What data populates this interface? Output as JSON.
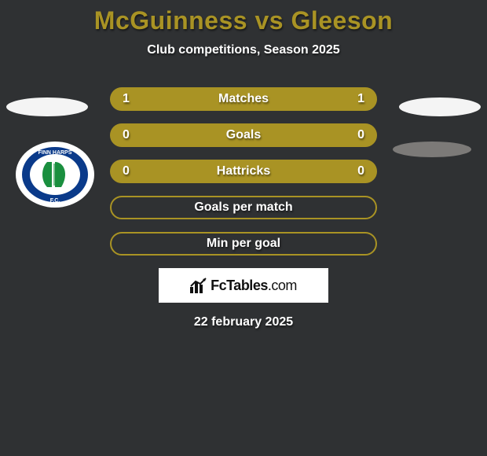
{
  "title_color": "#a99324",
  "text_color": "#ffffff",
  "background_color": "#2f3133",
  "pill_fill": "#a99324",
  "pill_border": "#a99324",
  "title": "McGuinness vs Gleeson",
  "subtitle": "Club competitions, Season 2025",
  "date": "22 february 2025",
  "watermark": {
    "name": "FcTables",
    "suffix": ".com"
  },
  "rows": [
    {
      "label": "Matches",
      "left": "1",
      "right": "1",
      "filled": true
    },
    {
      "label": "Goals",
      "left": "0",
      "right": "0",
      "filled": true
    },
    {
      "label": "Hattricks",
      "left": "0",
      "right": "0",
      "filled": true
    },
    {
      "label": "Goals per match",
      "left": "",
      "right": "",
      "filled": false
    },
    {
      "label": "Min per goal",
      "left": "",
      "right": "",
      "filled": false
    }
  ],
  "crest": {
    "outer": "#ffffff",
    "ring": "#0a3a8a",
    "inner": "#ffffff",
    "harp": "#1a8f3f",
    "text_top": "FINN HARPS",
    "text_bot": "F.C."
  }
}
